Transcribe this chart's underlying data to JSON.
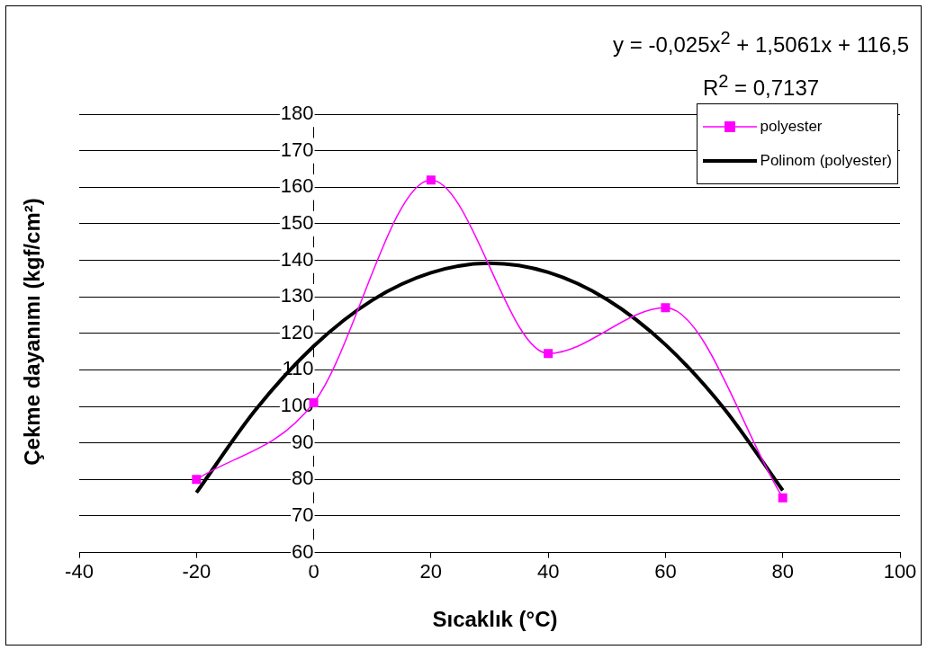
{
  "chart_data": {
    "type": "line",
    "xlabel": "Sıcaklık (°C)",
    "ylabel": "Çekme dayanımı  (kgf/cm²)",
    "annotations": [
      "y = -0,025x$^{2}$ + 1,5061x + 116,5",
      "R$^{2}$ = 0,7137"
    ],
    "series": [
      {
        "name": "polyester",
        "color": "#ff00ff",
        "x": [
          -20,
          0,
          20,
          40,
          60,
          80
        ],
        "values": [
          80,
          101,
          162,
          114.5,
          127,
          75
        ],
        "marker": "square"
      },
      {
        "name": "Polinom (polyester)",
        "color": "#000000",
        "type": "line",
        "marker": "none",
        "x": [
          -20,
          -10,
          0,
          10,
          20,
          30,
          40,
          50,
          60,
          70,
          80
        ],
        "values": [
          76.4,
          98.9,
          116.5,
          129.1,
          136.6,
          139.2,
          136.7,
          129.3,
          116.9,
          99.4,
          77.0
        ]
      }
    ],
    "xlim": [
      -40,
      100
    ],
    "xticks": [
      -40,
      -20,
      0,
      20,
      40,
      60,
      80,
      100
    ],
    "ylim": [
      60,
      180
    ],
    "yticks": [
      60,
      70,
      80,
      90,
      100,
      110,
      120,
      130,
      140,
      150,
      160,
      170,
      180
    ],
    "grid": "y",
    "legend": "top right"
  }
}
